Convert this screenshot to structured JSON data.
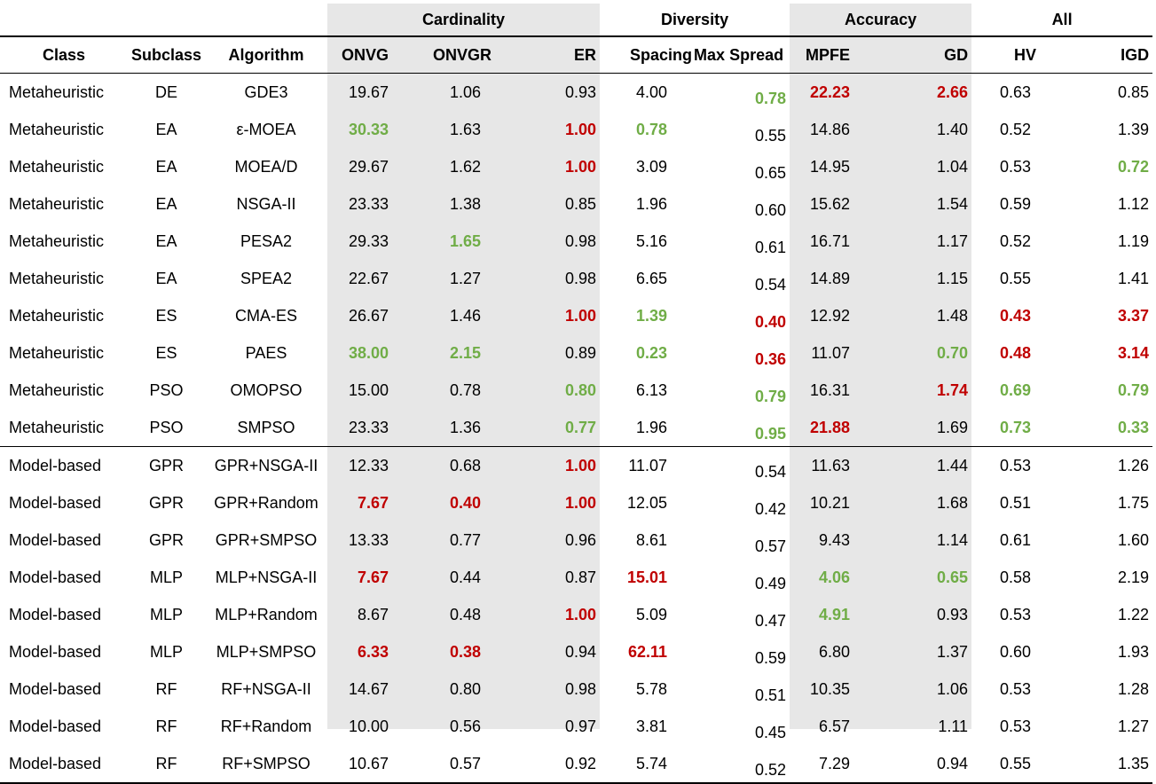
{
  "groups": {
    "cardinality": "Cardinality",
    "diversity": "Diversity",
    "accuracy": "Accuracy",
    "all": "All"
  },
  "columns": {
    "class": "Class",
    "subclass": "Subclass",
    "algorithm": "Algorithm",
    "onvg": "ONVG",
    "onvgr": "ONVGR",
    "er": "ER",
    "spacing": "Spacing",
    "max_spread": "Max Spread",
    "mpfe": "MPFE",
    "gd": "GD",
    "hv": "HV",
    "igd": "IGD"
  },
  "highlight_colors": {
    "best": "#70ad47",
    "worst": "#c00000"
  },
  "rows": [
    {
      "class": "Metaheuristic",
      "subclass": "DE",
      "algorithm": "GDE3",
      "onvg": "19.67",
      "onvgr": "1.06",
      "er": "0.93",
      "spacing": "4.00",
      "max_spread": "0.78",
      "mpfe": "22.23",
      "gd": "2.66",
      "hv": "0.63",
      "igd": "0.85"
    },
    {
      "class": "Metaheuristic",
      "subclass": "EA",
      "algorithm": "ε-MOEA",
      "onvg": "30.33",
      "onvgr": "1.63",
      "er": "1.00",
      "spacing": "0.78",
      "max_spread": "0.55",
      "mpfe": "14.86",
      "gd": "1.40",
      "hv": "0.52",
      "igd": "1.39"
    },
    {
      "class": "Metaheuristic",
      "subclass": "EA",
      "algorithm": "MOEA/D",
      "onvg": "29.67",
      "onvgr": "1.62",
      "er": "1.00",
      "spacing": "3.09",
      "max_spread": "0.65",
      "mpfe": "14.95",
      "gd": "1.04",
      "hv": "0.53",
      "igd": "0.72"
    },
    {
      "class": "Metaheuristic",
      "subclass": "EA",
      "algorithm": "NSGA-II",
      "onvg": "23.33",
      "onvgr": "1.38",
      "er": "0.85",
      "spacing": "1.96",
      "max_spread": "0.60",
      "mpfe": "15.62",
      "gd": "1.54",
      "hv": "0.59",
      "igd": "1.12"
    },
    {
      "class": "Metaheuristic",
      "subclass": "EA",
      "algorithm": "PESA2",
      "onvg": "29.33",
      "onvgr": "1.65",
      "er": "0.98",
      "spacing": "5.16",
      "max_spread": "0.61",
      "mpfe": "16.71",
      "gd": "1.17",
      "hv": "0.52",
      "igd": "1.19"
    },
    {
      "class": "Metaheuristic",
      "subclass": "EA",
      "algorithm": "SPEA2",
      "onvg": "22.67",
      "onvgr": "1.27",
      "er": "0.98",
      "spacing": "6.65",
      "max_spread": "0.54",
      "mpfe": "14.89",
      "gd": "1.15",
      "hv": "0.55",
      "igd": "1.41"
    },
    {
      "class": "Metaheuristic",
      "subclass": "ES",
      "algorithm": "CMA-ES",
      "onvg": "26.67",
      "onvgr": "1.46",
      "er": "1.00",
      "spacing": "1.39",
      "max_spread": "0.40",
      "mpfe": "12.92",
      "gd": "1.48",
      "hv": "0.43",
      "igd": "3.37"
    },
    {
      "class": "Metaheuristic",
      "subclass": "ES",
      "algorithm": "PAES",
      "onvg": "38.00",
      "onvgr": "2.15",
      "er": "0.89",
      "spacing": "0.23",
      "max_spread": "0.36",
      "mpfe": "11.07",
      "gd": "0.70",
      "hv": "0.48",
      "igd": "3.14"
    },
    {
      "class": "Metaheuristic",
      "subclass": "PSO",
      "algorithm": "OMOPSO",
      "onvg": "15.00",
      "onvgr": "0.78",
      "er": "0.80",
      "spacing": "6.13",
      "max_spread": "0.79",
      "mpfe": "16.31",
      "gd": "1.74",
      "hv": "0.69",
      "igd": "0.79"
    },
    {
      "class": "Metaheuristic",
      "subclass": "PSO",
      "algorithm": "SMPSO",
      "onvg": "23.33",
      "onvgr": "1.36",
      "er": "0.77",
      "spacing": "1.96",
      "max_spread": "0.95",
      "mpfe": "21.88",
      "gd": "1.69",
      "hv": "0.73",
      "igd": "0.33"
    },
    {
      "class": "Model-based",
      "subclass": "GPR",
      "algorithm": "GPR+NSGA-II",
      "onvg": "12.33",
      "onvgr": "0.68",
      "er": "1.00",
      "spacing": "11.07",
      "max_spread": "0.54",
      "mpfe": "11.63",
      "gd": "1.44",
      "hv": "0.53",
      "igd": "1.26"
    },
    {
      "class": "Model-based",
      "subclass": "GPR",
      "algorithm": "GPR+Random",
      "onvg": "7.67",
      "onvgr": "0.40",
      "er": "1.00",
      "spacing": "12.05",
      "max_spread": "0.42",
      "mpfe": "10.21",
      "gd": "1.68",
      "hv": "0.51",
      "igd": "1.75"
    },
    {
      "class": "Model-based",
      "subclass": "GPR",
      "algorithm": "GPR+SMPSO",
      "onvg": "13.33",
      "onvgr": "0.77",
      "er": "0.96",
      "spacing": "8.61",
      "max_spread": "0.57",
      "mpfe": "9.43",
      "gd": "1.14",
      "hv": "0.61",
      "igd": "1.60"
    },
    {
      "class": "Model-based",
      "subclass": "MLP",
      "algorithm": "MLP+NSGA-II",
      "onvg": "7.67",
      "onvgr": "0.44",
      "er": "0.87",
      "spacing": "15.01",
      "max_spread": "0.49",
      "mpfe": "4.06",
      "gd": "0.65",
      "hv": "0.58",
      "igd": "2.19"
    },
    {
      "class": "Model-based",
      "subclass": "MLP",
      "algorithm": "MLP+Random",
      "onvg": "8.67",
      "onvgr": "0.48",
      "er": "1.00",
      "spacing": "5.09",
      "max_spread": "0.47",
      "mpfe": "4.91",
      "gd": "0.93",
      "hv": "0.53",
      "igd": "1.22"
    },
    {
      "class": "Model-based",
      "subclass": "MLP",
      "algorithm": "MLP+SMPSO",
      "onvg": "6.33",
      "onvgr": "0.38",
      "er": "0.94",
      "spacing": "62.11",
      "max_spread": "0.59",
      "mpfe": "6.80",
      "gd": "1.37",
      "hv": "0.60",
      "igd": "1.93"
    },
    {
      "class": "Model-based",
      "subclass": "RF",
      "algorithm": "RF+NSGA-II",
      "onvg": "14.67",
      "onvgr": "0.80",
      "er": "0.98",
      "spacing": "5.78",
      "max_spread": "0.51",
      "mpfe": "10.35",
      "gd": "1.06",
      "hv": "0.53",
      "igd": "1.28"
    },
    {
      "class": "Model-based",
      "subclass": "RF",
      "algorithm": "RF+Random",
      "onvg": "10.00",
      "onvgr": "0.56",
      "er": "0.97",
      "spacing": "3.81",
      "max_spread": "0.45",
      "mpfe": "6.57",
      "gd": "1.11",
      "hv": "0.53",
      "igd": "1.27"
    },
    {
      "class": "Model-based",
      "subclass": "RF",
      "algorithm": "RF+SMPSO",
      "onvg": "10.67",
      "onvgr": "0.57",
      "er": "0.92",
      "spacing": "5.74",
      "max_spread": "0.52",
      "mpfe": "7.29",
      "gd": "0.94",
      "hv": "0.55",
      "igd": "1.35"
    }
  ],
  "highlights": {
    "best": [
      [
        0,
        "max_spread"
      ],
      [
        1,
        "onvg"
      ],
      [
        1,
        "spacing"
      ],
      [
        2,
        "igd"
      ],
      [
        4,
        "onvgr"
      ],
      [
        6,
        "spacing"
      ],
      [
        7,
        "onvg"
      ],
      [
        7,
        "onvgr"
      ],
      [
        7,
        "spacing"
      ],
      [
        7,
        "gd"
      ],
      [
        8,
        "er"
      ],
      [
        8,
        "max_spread"
      ],
      [
        8,
        "hv"
      ],
      [
        8,
        "igd"
      ],
      [
        9,
        "er"
      ],
      [
        9,
        "max_spread"
      ],
      [
        9,
        "hv"
      ],
      [
        9,
        "igd"
      ],
      [
        13,
        "mpfe"
      ],
      [
        13,
        "gd"
      ],
      [
        14,
        "mpfe"
      ]
    ],
    "worst": [
      [
        0,
        "mpfe"
      ],
      [
        0,
        "gd"
      ],
      [
        1,
        "er"
      ],
      [
        2,
        "er"
      ],
      [
        6,
        "er"
      ],
      [
        6,
        "max_spread"
      ],
      [
        6,
        "hv"
      ],
      [
        6,
        "igd"
      ],
      [
        7,
        "max_spread"
      ],
      [
        7,
        "hv"
      ],
      [
        7,
        "igd"
      ],
      [
        8,
        "gd"
      ],
      [
        9,
        "mpfe"
      ],
      [
        10,
        "er"
      ],
      [
        11,
        "onvg"
      ],
      [
        11,
        "onvgr"
      ],
      [
        11,
        "er"
      ],
      [
        13,
        "onvg"
      ],
      [
        13,
        "spacing"
      ],
      [
        14,
        "er"
      ],
      [
        15,
        "onvg"
      ],
      [
        15,
        "onvgr"
      ],
      [
        15,
        "spacing"
      ]
    ]
  }
}
